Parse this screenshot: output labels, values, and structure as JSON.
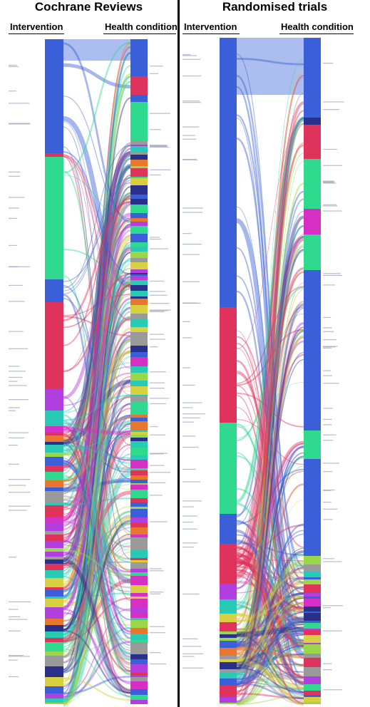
{
  "panels": [
    {
      "title": "Cochrane Reviews",
      "left_header": "Intervention",
      "right_header": "Health condition"
    },
    {
      "title": "Randomised trials",
      "left_header": "Intervention",
      "right_header": "Health condition"
    }
  ],
  "colors": {
    "blue": "#3a5fd8",
    "green": "#2fd98e",
    "red": "#e0335c",
    "purple": "#b13fe0",
    "teal": "#28c9b5",
    "orange": "#e8772e",
    "magenta": "#d62fc4",
    "yellow": "#d8d040",
    "lime": "#9ad84a",
    "navy": "#2a2f8a",
    "gray": "#9a9a9a",
    "light_blue": "#8fa8ea"
  }
}
